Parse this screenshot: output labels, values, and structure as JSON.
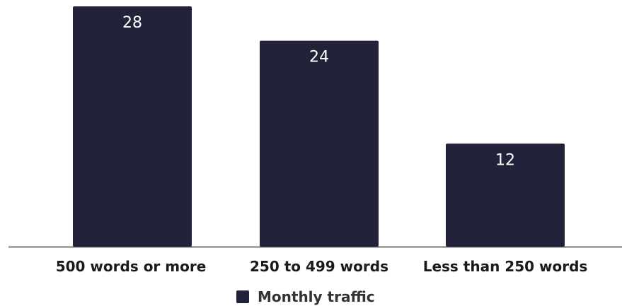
{
  "chart_data": {
    "type": "bar",
    "categories": [
      "500 words or more",
      "250 to 499 words",
      "Less than 250 words"
    ],
    "series": [
      {
        "name": "Monthly traffic",
        "values": [
          28,
          24,
          12
        ]
      }
    ],
    "data_labels": [
      "28",
      "24",
      "12"
    ],
    "ylim": [
      0,
      28
    ],
    "grid": false,
    "legend_position": "bottom-center",
    "colors": {
      "bar": "#22223a",
      "axis": "#444444"
    }
  }
}
